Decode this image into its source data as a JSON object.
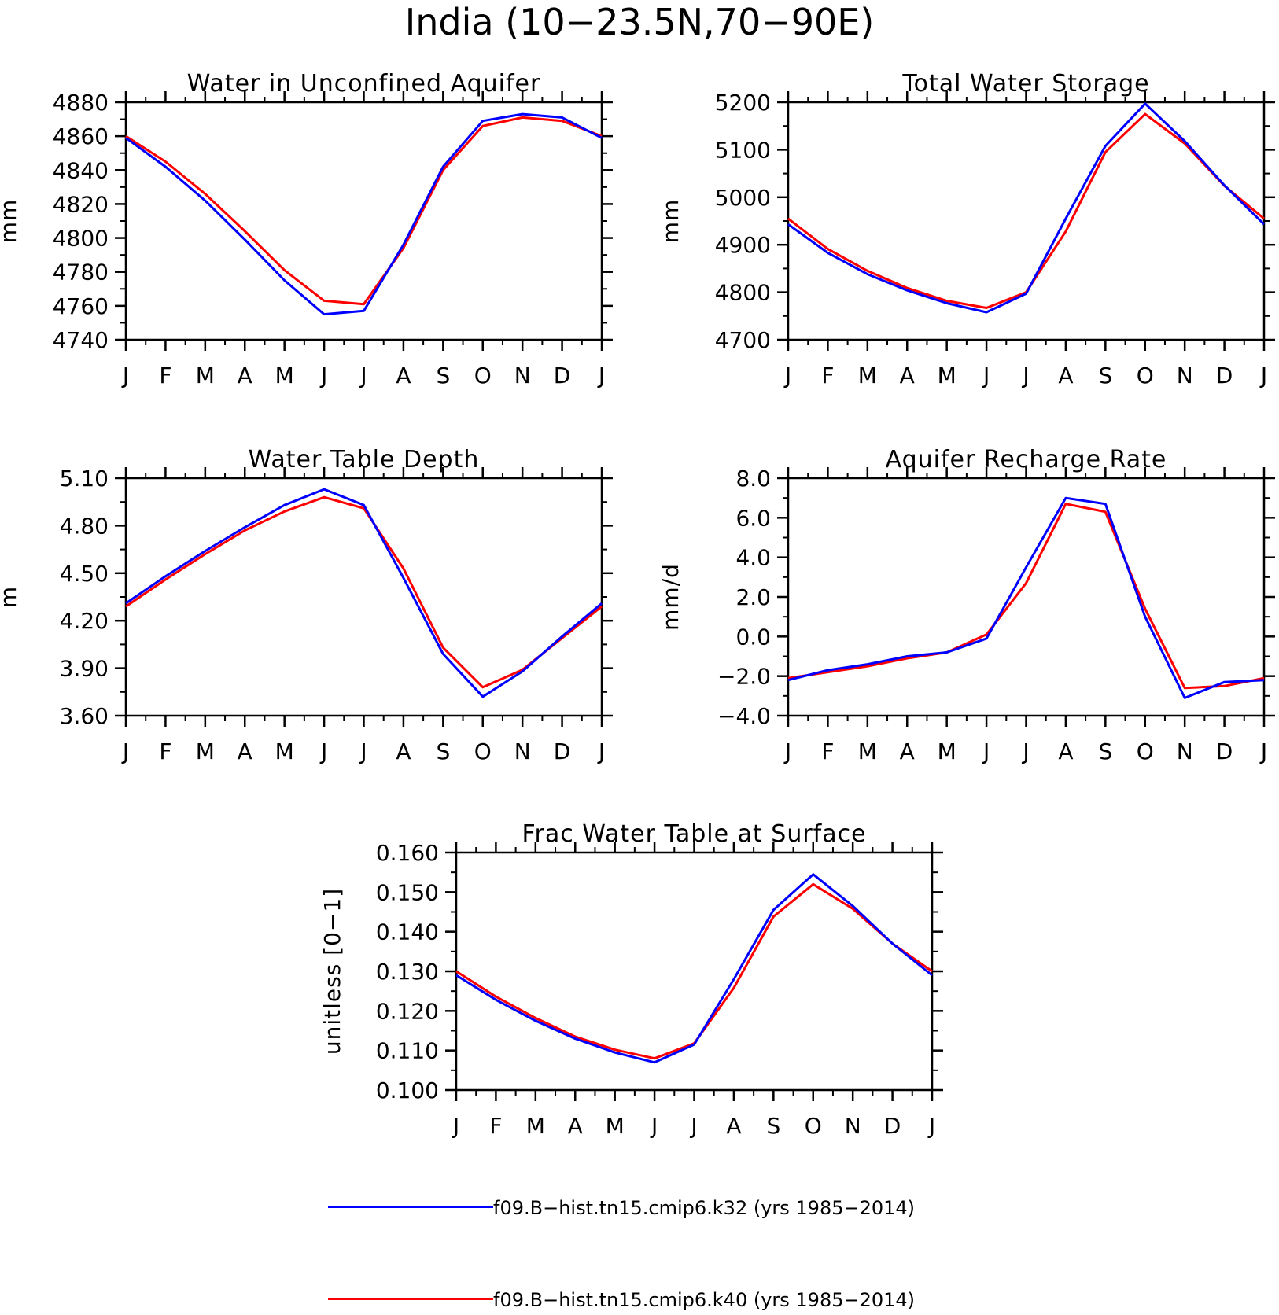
{
  "title": "India (10−23.5N,70−90E)",
  "colors": {
    "k32": "#0000ff",
    "k40": "#ff0000",
    "axis": "#000000"
  },
  "legend": [
    {
      "label": "f09.B−hist.tn15.cmip6.k32 (yrs 1985−2014)",
      "color": "#0000ff"
    },
    {
      "label": "f09.B−hist.tn15.cmip6.k40 (yrs 1985−2014)",
      "color": "#ff0000"
    }
  ],
  "chart_data": [
    {
      "type": "line",
      "title": "Water in Unconfined Aquifer",
      "ylabel": "mm",
      "categories": [
        "J",
        "F",
        "M",
        "A",
        "M",
        "J",
        "J",
        "A",
        "S",
        "O",
        "N",
        "D",
        "J"
      ],
      "ylim": [
        4740,
        4880
      ],
      "yticks": [
        "4740",
        "4760",
        "4780",
        "4800",
        "4820",
        "4840",
        "4860",
        "4880"
      ],
      "series": [
        {
          "values": [
            4859,
            4842,
            4822,
            4799,
            4775,
            4755,
            4757,
            4796,
            4842,
            4869,
            4873,
            4871,
            4859
          ]
        },
        {
          "values": [
            4860,
            4845,
            4826,
            4804,
            4781,
            4763,
            4761,
            4794,
            4840,
            4866,
            4871,
            4869,
            4860
          ]
        }
      ]
    },
    {
      "type": "line",
      "title": "Total Water Storage",
      "ylabel": "mm",
      "categories": [
        "J",
        "F",
        "M",
        "A",
        "M",
        "J",
        "J",
        "A",
        "S",
        "O",
        "N",
        "D",
        "J"
      ],
      "ylim": [
        4700,
        5200
      ],
      "yticks": [
        "4700",
        "4800",
        "4900",
        "5000",
        "5100",
        "5200"
      ],
      "series": [
        {
          "values": [
            4943,
            4883,
            4838,
            4804,
            4777,
            4758,
            4797,
            4955,
            5108,
            5197,
            5118,
            5025,
            4943
          ]
        },
        {
          "values": [
            4955,
            4891,
            4845,
            4809,
            4782,
            4767,
            4800,
            4928,
            5095,
            5175,
            5113,
            5024,
            4955
          ]
        }
      ]
    },
    {
      "type": "line",
      "title": "Water Table Depth",
      "ylabel": "m",
      "categories": [
        "J",
        "F",
        "M",
        "A",
        "M",
        "J",
        "J",
        "A",
        "S",
        "O",
        "N",
        "D",
        "J"
      ],
      "ylim": [
        3.6,
        5.1
      ],
      "yticks": [
        "3.60",
        "3.90",
        "4.20",
        "4.50",
        "4.80",
        "5.10"
      ],
      "series": [
        {
          "values": [
            4.31,
            4.48,
            4.64,
            4.79,
            4.93,
            5.03,
            4.93,
            4.47,
            3.99,
            3.72,
            3.88,
            4.1,
            4.31
          ]
        },
        {
          "values": [
            4.29,
            4.46,
            4.62,
            4.77,
            4.89,
            4.98,
            4.91,
            4.53,
            4.03,
            3.78,
            3.89,
            4.09,
            4.29
          ]
        }
      ]
    },
    {
      "type": "line",
      "title": "Aquifer Recharge Rate",
      "ylabel": "mm/d",
      "categories": [
        "J",
        "F",
        "M",
        "A",
        "M",
        "J",
        "J",
        "A",
        "S",
        "O",
        "N",
        "D",
        "J"
      ],
      "ylim": [
        -4,
        8
      ],
      "yticks": [
        "−4.0",
        "−2.0",
        "0.0",
        "2.0",
        "4.0",
        "6.0",
        "8.0"
      ],
      "series": [
        {
          "values": [
            -2.2,
            -1.7,
            -1.4,
            -1.0,
            -0.8,
            -0.1,
            3.5,
            7.0,
            6.7,
            1.0,
            -3.1,
            -2.3,
            -2.2
          ]
        },
        {
          "values": [
            -2.1,
            -1.8,
            -1.5,
            -1.1,
            -0.8,
            0.1,
            2.7,
            6.7,
            6.3,
            1.4,
            -2.6,
            -2.5,
            -2.1
          ]
        }
      ]
    },
    {
      "type": "line",
      "title": "Frac Water Table at Surface",
      "ylabel": "unitless [0−1]",
      "categories": [
        "J",
        "F",
        "M",
        "A",
        "M",
        "J",
        "J",
        "A",
        "S",
        "O",
        "N",
        "D",
        "J"
      ],
      "ylim": [
        0.1,
        0.16
      ],
      "yticks": [
        "0.100",
        "0.110",
        "0.120",
        "0.130",
        "0.140",
        "0.150",
        "0.160"
      ],
      "series": [
        {
          "values": [
            0.129,
            0.1228,
            0.1175,
            0.113,
            0.1095,
            0.107,
            0.1115,
            0.128,
            0.1455,
            0.1545,
            0.1465,
            0.137,
            0.129
          ]
        },
        {
          "values": [
            0.13,
            0.1236,
            0.1182,
            0.1135,
            0.1102,
            0.108,
            0.1118,
            0.1258,
            0.1438,
            0.152,
            0.1458,
            0.137,
            0.13
          ]
        }
      ]
    }
  ]
}
